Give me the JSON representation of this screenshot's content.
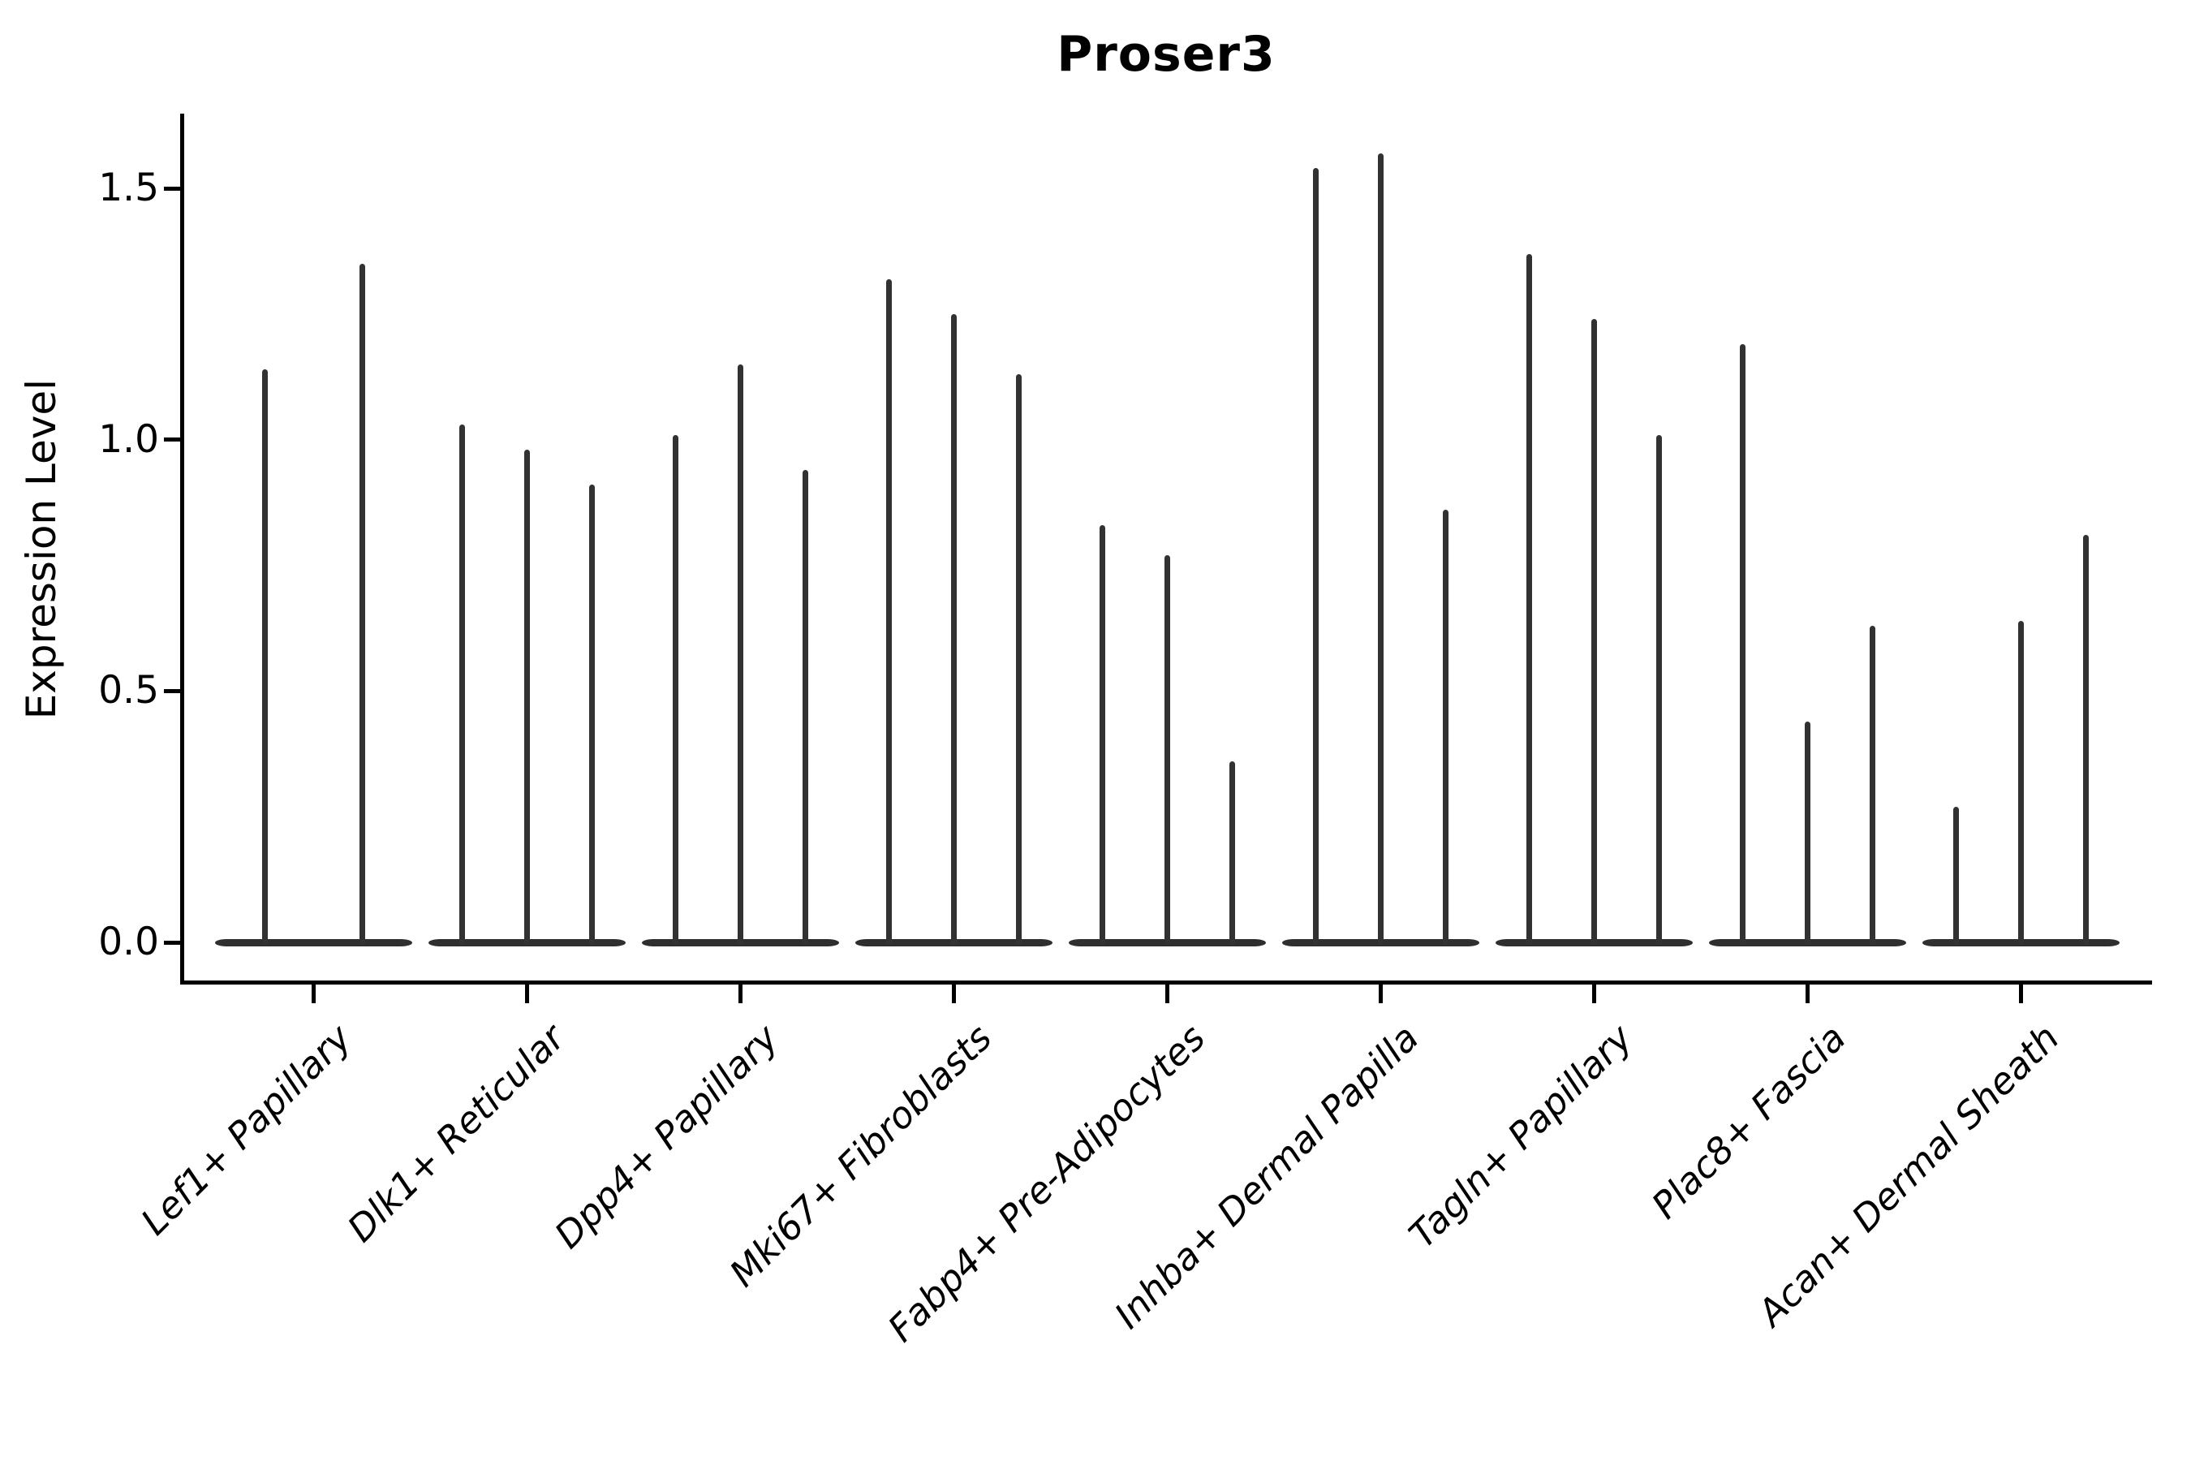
{
  "title": "Proser3",
  "y_axis": {
    "label": "Expression Level",
    "ticks": [
      {
        "label": "1.5",
        "value": 1.5
      },
      {
        "label": "1.0",
        "value": 1.0
      },
      {
        "label": "0.5",
        "value": 0.5
      },
      {
        "label": "0.0",
        "value": 0.0
      }
    ]
  },
  "colors": {
    "background": "#ffffff",
    "axis_ink": "#000000",
    "violin_fill": "#323232"
  },
  "chart_data": {
    "type": "violin",
    "title": "Proser3",
    "xlabel": "",
    "ylabel": "Expression Level",
    "ylim": [
      -0.08,
      1.65
    ],
    "yticks": [
      0.0,
      0.5,
      1.0,
      1.5
    ],
    "grid": false,
    "legend": "none",
    "description": "Single-cell gene expression violin plot; each cell-type category contains 2-3 extremely thin violins: a wide flat base at expression 0 with a narrow spike rising to the maximum expression value.",
    "categories": [
      "Lef1+ Papillary",
      "Dlk1+ Reticular",
      "Dpp4+ Papillary",
      "Mki67+ Fibroblasts",
      "Fabp4+ Pre-Adipocytes",
      "Inhba+ Dermal Papilla",
      "Tagln+ Papillary",
      "Plac8+ Fascia",
      "Acan+ Dermal Sheath"
    ],
    "violins_per_category": [
      2,
      3,
      3,
      3,
      3,
      3,
      3,
      3,
      3
    ],
    "violin_max_values": [
      [
        1.14,
        1.35
      ],
      [
        1.03,
        0.98,
        0.91
      ],
      [
        1.01,
        1.15,
        0.94
      ],
      [
        1.32,
        1.25,
        1.13
      ],
      [
        0.83,
        0.77,
        0.36
      ],
      [
        1.54,
        1.57,
        0.86
      ],
      [
        1.37,
        1.24,
        1.01
      ],
      [
        1.19,
        0.44,
        0.63
      ],
      [
        0.27,
        0.64,
        0.81
      ]
    ]
  }
}
